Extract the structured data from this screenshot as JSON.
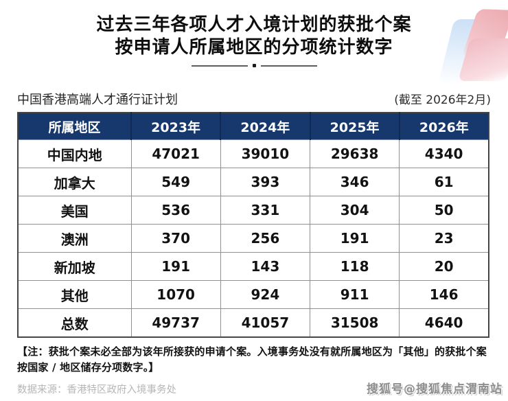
{
  "title": {
    "line1": "过去三年各项人才入境计划的获批个案",
    "line2": "按申请人所属地区的分项统计数字"
  },
  "subtitle": {
    "scheme_name": "中国香港高端人才通行证计划",
    "cutoff_date": "(截至 2026年2月)"
  },
  "table": {
    "headers": [
      "所属地区",
      "2023年",
      "2024年",
      "2025年",
      "2026年"
    ],
    "rows": [
      {
        "region": "中国内地",
        "values": [
          "47021",
          "39010",
          "29638",
          "4340"
        ]
      },
      {
        "region": "加拿大",
        "values": [
          "549",
          "393",
          "346",
          "61"
        ]
      },
      {
        "region": "美国",
        "values": [
          "536",
          "331",
          "304",
          "50"
        ]
      },
      {
        "region": "澳洲",
        "values": [
          "370",
          "256",
          "191",
          "23"
        ]
      },
      {
        "region": "新加坡",
        "values": [
          "191",
          "143",
          "118",
          "20"
        ]
      },
      {
        "region": "其他",
        "values": [
          "1070",
          "924",
          "911",
          "146"
        ]
      },
      {
        "region": "总数",
        "values": [
          "49737",
          "41057",
          "31508",
          "4640"
        ]
      }
    ]
  },
  "note": "【注：获批个案未必全部为该年所接获的申请个案。入境事务处没有就所属地区为「其他」的获批个案按国家 / 地区储存分项数字。】",
  "source": "数据来源：香港特区政府入境事务处",
  "watermark": "搜狐号@搜狐焦点渭南站",
  "colors": {
    "header_bg": "#17386d",
    "header_text": "#ffffff",
    "grid_line": "#8f8f8f",
    "accent_pink": "#f0bac1",
    "accent_blue": "#cbdff6"
  },
  "chart_data": {
    "type": "table",
    "title": "过去三年各项人才入境计划的获批个案按申请人所属地区的分项统计数字",
    "subtitle": "中国香港高端人才通行证计划 (截至 2026年2月)",
    "columns": [
      "所属地区",
      "2023年",
      "2024年",
      "2025年",
      "2026年"
    ],
    "rows": [
      [
        "中国内地",
        47021,
        39010,
        29638,
        4340
      ],
      [
        "加拿大",
        549,
        393,
        346,
        61
      ],
      [
        "美国",
        536,
        331,
        304,
        50
      ],
      [
        "澳洲",
        370,
        256,
        191,
        23
      ],
      [
        "新加坡",
        191,
        143,
        118,
        20
      ],
      [
        "其他",
        1070,
        924,
        911,
        146
      ],
      [
        "总数",
        49737,
        41057,
        31508,
        4640
      ]
    ]
  }
}
